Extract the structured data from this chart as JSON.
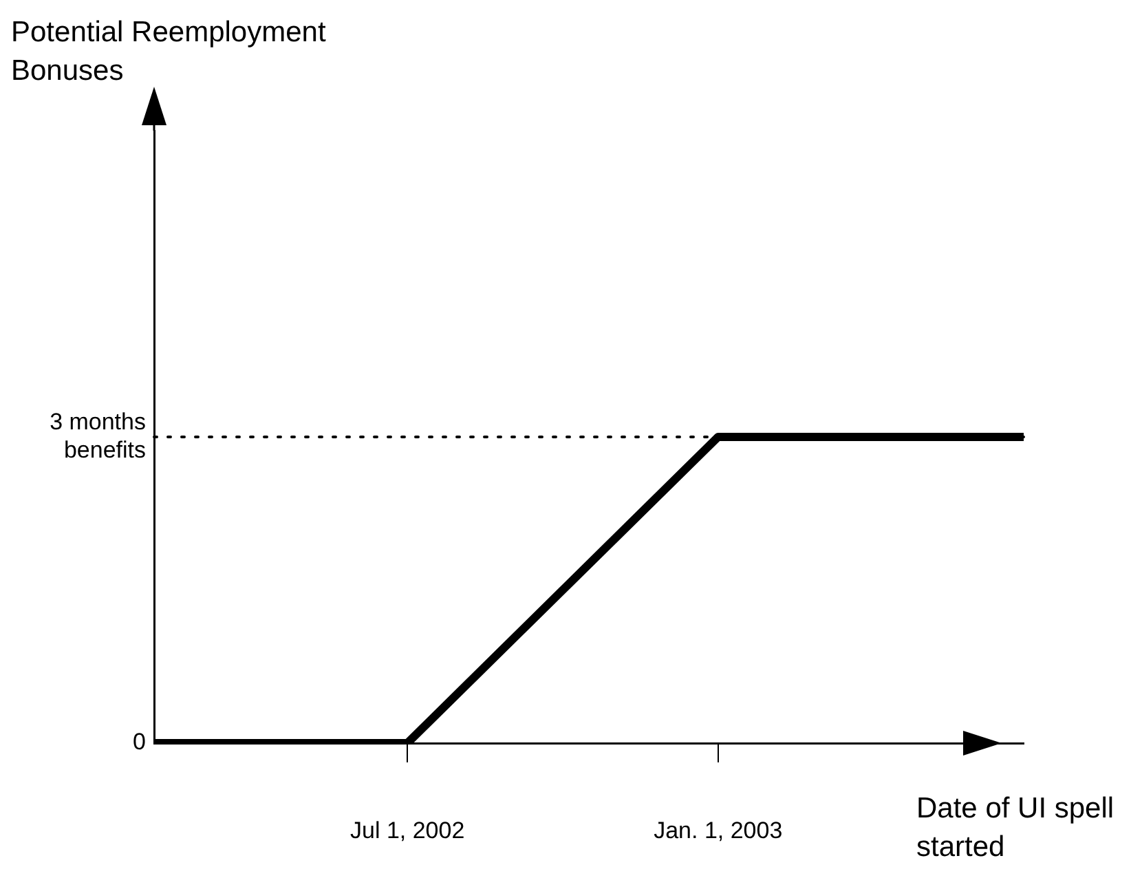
{
  "chart_data": {
    "type": "line",
    "ylabel": "Potential Reemployment Bonuses",
    "xlabel": "Date of UI spell started",
    "x": [
      "2002-02-01",
      "2002-07-01",
      "2003-01-01",
      "2003-07-01"
    ],
    "series": [
      {
        "color": "#000000",
        "values": [
          0,
          0,
          3,
          3
        ]
      }
    ],
    "xlim": [
      "2002-02-01",
      "2003-07-01"
    ],
    "xticks": [
      {
        "value": "2002-07-01",
        "label": "Jul 1, 2002"
      },
      {
        "value": "2003-01-01",
        "label": "Jan. 1, 2003"
      }
    ],
    "ylim": [
      0,
      6
    ],
    "yticks": [
      0,
      {
        "value": 3,
        "label": "3 months benefits"
      }
    ],
    "ref_lines": [
      {
        "axis": "y",
        "value": 3,
        "label": null,
        "color": "#000000",
        "line_style": "dotted"
      }
    ],
    "grid": false,
    "legend": false
  }
}
